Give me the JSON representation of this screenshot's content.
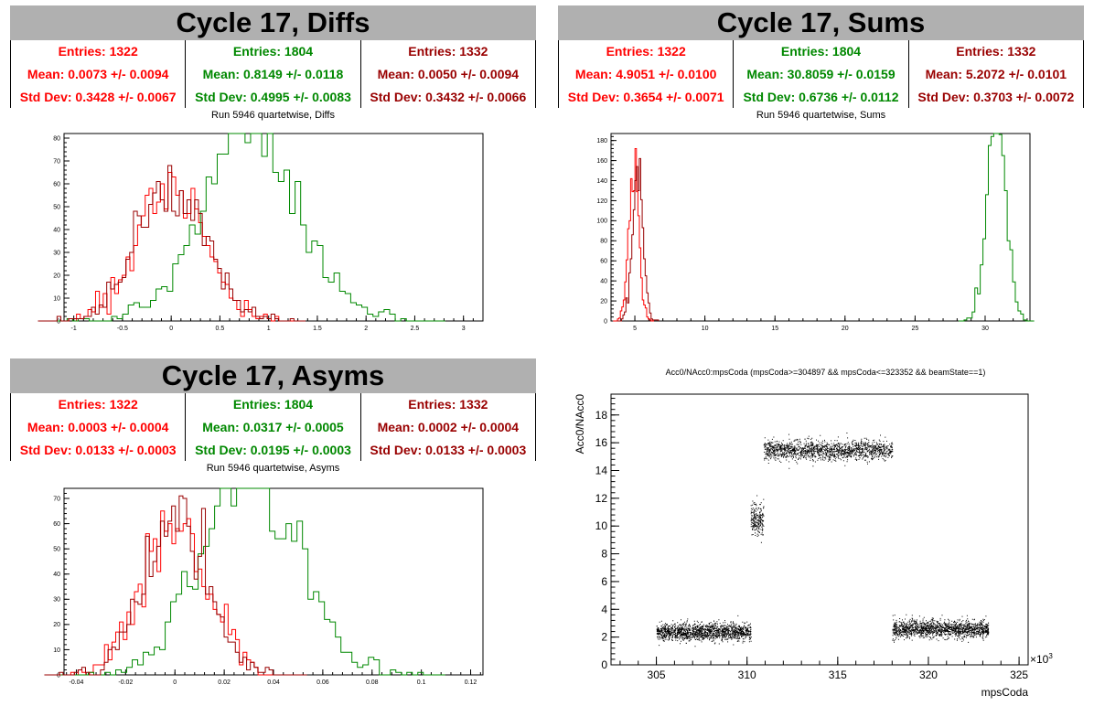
{
  "colors": {
    "red": "#ff0000",
    "green": "#008800",
    "darkred": "#990000",
    "points": "#000000"
  },
  "panels": {
    "diffs": {
      "title": "Cycle 17, Diffs",
      "subtitle": "Run 5946 quartetwise, Diffs",
      "stats": [
        {
          "entries": "Entries: 1322",
          "mean": "Mean: 0.0073 +/- 0.0094",
          "std": "Std Dev: 0.3428 +/- 0.0067"
        },
        {
          "entries": "Entries: 1804",
          "mean": "Mean: 0.8149 +/- 0.0118",
          "std": "Std Dev: 0.4995 +/- 0.0083"
        },
        {
          "entries": "Entries: 1332",
          "mean": "Mean: 0.0050 +/- 0.0094",
          "std": "Std Dev: 0.3432 +/- 0.0066"
        }
      ]
    },
    "sums": {
      "title": "Cycle 17, Sums",
      "subtitle": "Run 5946 quartetwise, Sums",
      "stats": [
        {
          "entries": "Entries: 1322",
          "mean": "Mean: 4.9051 +/- 0.0100",
          "std": "Std Dev: 0.3654 +/- 0.0071"
        },
        {
          "entries": "Entries: 1804",
          "mean": "Mean: 30.8059 +/- 0.0159",
          "std": "Std Dev: 0.6736 +/- 0.0112"
        },
        {
          "entries": "Entries: 1332",
          "mean": "Mean: 5.2072 +/- 0.0101",
          "std": "Std Dev: 0.3703 +/- 0.0072"
        }
      ]
    },
    "asyms": {
      "title": "Cycle 17, Asyms",
      "subtitle": "Run 5946 quartetwise, Asyms",
      "stats": [
        {
          "entries": "Entries: 1322",
          "mean": "Mean: 0.0003 +/- 0.0004",
          "std": "Std Dev: 0.0133 +/- 0.0003"
        },
        {
          "entries": "Entries: 1804",
          "mean": "Mean: 0.0317 +/- 0.0005",
          "std": "Std Dev: 0.0195 +/- 0.0003"
        },
        {
          "entries": "Entries: 1332",
          "mean": "Mean: 0.0002 +/- 0.0004",
          "std": "Std Dev: 0.0133 +/- 0.0003"
        }
      ]
    },
    "scatter": {
      "title": "Acc0/NAcc0:mpsCoda (mpsCoda>=304897 && mpsCoda<=323352 && beamState==1)"
    }
  },
  "chart_data": [
    {
      "type": "histogram",
      "title": "Run 5946 quartetwise, Diffs",
      "xlim": [
        -1.1,
        3.2
      ],
      "ylim": [
        0,
        82
      ],
      "xticks": [
        -1,
        -0.5,
        0,
        0.5,
        1,
        1.5,
        2,
        2.5,
        3
      ],
      "xtick_labels": [
        "-1",
        "-0.5",
        "0",
        "0.5",
        "1",
        "1.5",
        "2",
        "2.5",
        "3"
      ],
      "yticks": [
        0,
        10,
        20,
        30,
        40,
        50,
        60,
        70,
        80
      ],
      "series": [
        {
          "color": "red",
          "entries": 1322,
          "mean": 0.0073,
          "std": 0.3428
        },
        {
          "color": "green",
          "entries": 1804,
          "mean": 0.8149,
          "std": 0.4995
        },
        {
          "color": "darkred",
          "entries": 1332,
          "mean": 0.005,
          "std": 0.3432
        }
      ]
    },
    {
      "type": "histogram",
      "title": "Run 5946 quartetwise, Sums",
      "xlim": [
        3.3,
        33.2
      ],
      "ylim": [
        0,
        187
      ],
      "xticks": [
        5,
        10,
        15,
        20,
        25,
        30
      ],
      "xtick_labels": [
        "5",
        "10",
        "15",
        "20",
        "25",
        "30"
      ],
      "yticks": [
        0,
        20,
        40,
        60,
        80,
        100,
        120,
        140,
        160,
        180
      ],
      "series": [
        {
          "color": "red",
          "entries": 1322,
          "mean": 4.9051,
          "std": 0.3654
        },
        {
          "color": "green",
          "entries": 1804,
          "mean": 30.8059,
          "std": 0.6736
        },
        {
          "color": "darkred",
          "entries": 1332,
          "mean": 5.2072,
          "std": 0.3703
        }
      ]
    },
    {
      "type": "histogram",
      "title": "Run 5946 quartetwise, Asyms",
      "xlim": [
        -0.045,
        0.125
      ],
      "ylim": [
        0,
        74
      ],
      "xticks": [
        -0.04,
        -0.02,
        0,
        0.02,
        0.04,
        0.06,
        0.08,
        0.1,
        0.12
      ],
      "xtick_labels": [
        "-0.04",
        "-0.02",
        "0",
        "0.02",
        "0.04",
        "0.06",
        "0.08",
        "0.1",
        "0.12"
      ],
      "yticks": [
        0,
        10,
        20,
        30,
        40,
        50,
        60,
        70
      ],
      "series": [
        {
          "color": "red",
          "entries": 1322,
          "mean": 0.0003,
          "std": 0.0133
        },
        {
          "color": "green",
          "entries": 1804,
          "mean": 0.0317,
          "std": 0.0195
        },
        {
          "color": "darkred",
          "entries": 1332,
          "mean": 0.0002,
          "std": 0.0133
        }
      ]
    },
    {
      "type": "scatter",
      "title": "Acc0/NAcc0:mpsCoda (mpsCoda>=304897 && mpsCoda<=323352 && beamState==1)",
      "xlabel": "mpsCoda",
      "ylabel": "Acc0/NAcc0",
      "x_multiplier_label": "×10",
      "x_multiplier_exp": "3",
      "xlim": [
        302.5,
        325.5
      ],
      "ylim": [
        0,
        19.5
      ],
      "xticks": [
        305,
        310,
        315,
        320,
        325
      ],
      "xtick_labels": [
        "305",
        "310",
        "315",
        "320",
        "325"
      ],
      "yticks": [
        0,
        2,
        4,
        6,
        8,
        10,
        12,
        14,
        16,
        18
      ],
      "ytick_labels": [
        "0",
        "2",
        "4",
        "6",
        "8",
        "10",
        "12",
        "14",
        "16",
        "18"
      ],
      "clusters": [
        {
          "x": [
            305.0,
            310.2
          ],
          "y_mean": 2.4,
          "y_spread": 0.9
        },
        {
          "x": [
            310.2,
            310.9
          ],
          "y_mean": 10.5,
          "y_spread": 1.8
        },
        {
          "x": [
            310.9,
            318.0
          ],
          "y_mean": 15.5,
          "y_spread": 1.0
        },
        {
          "x": [
            318.0,
            323.3
          ],
          "y_mean": 2.6,
          "y_spread": 0.9
        }
      ]
    }
  ]
}
